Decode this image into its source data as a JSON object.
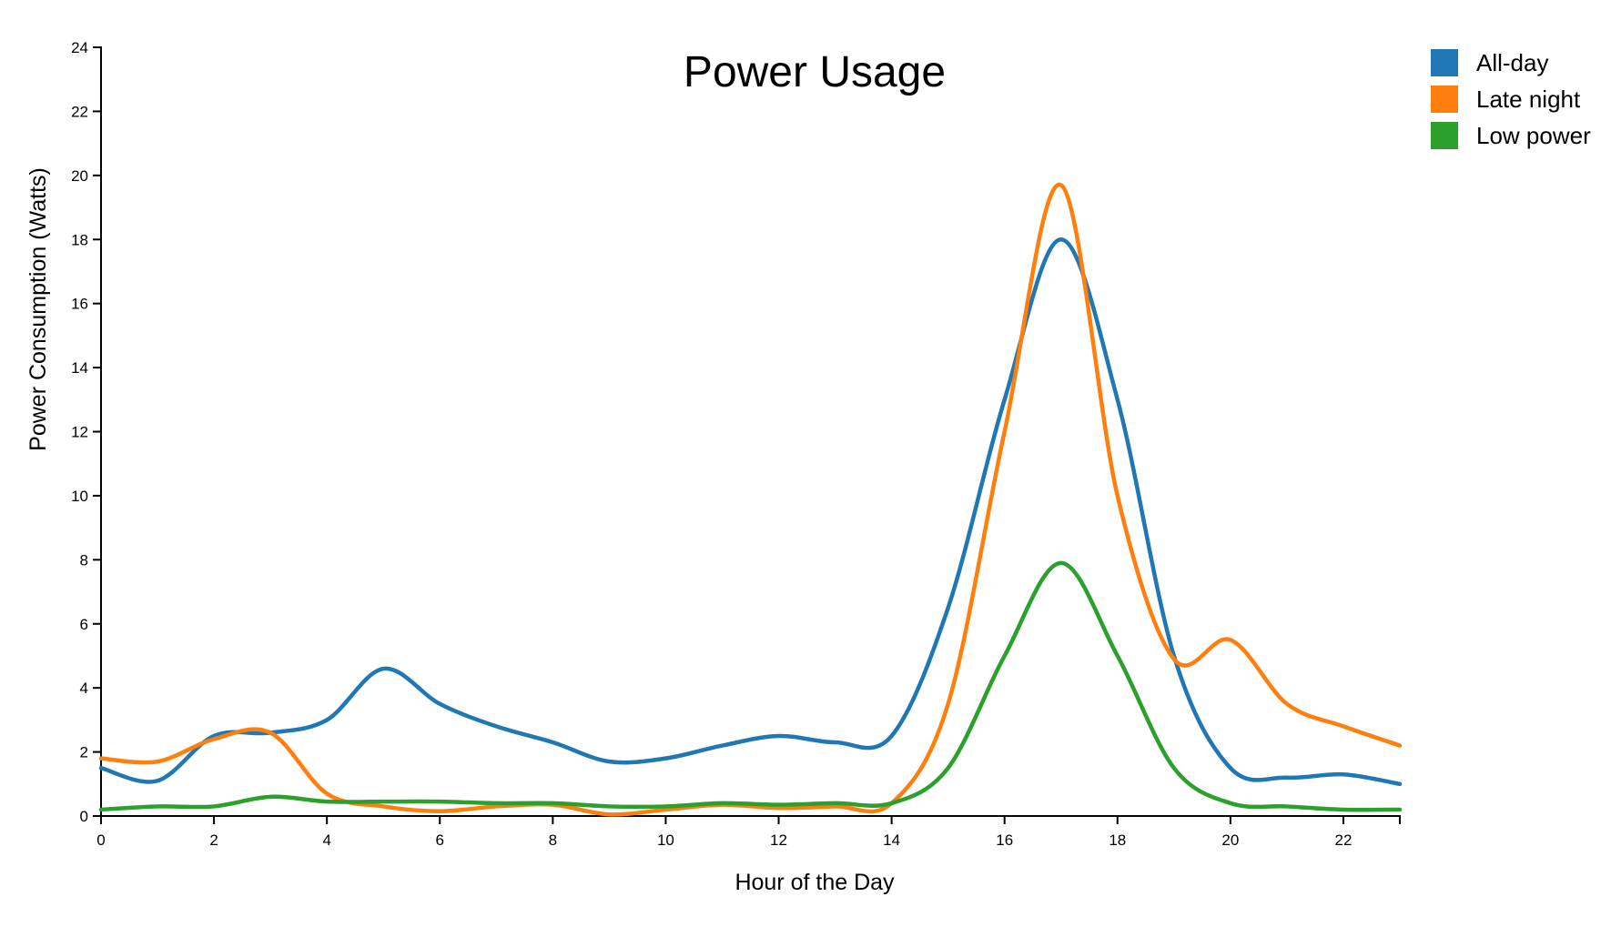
{
  "chart_data": {
    "type": "line",
    "title": "Power Usage",
    "xlabel": "Hour of the Day",
    "ylabel": "Power Consumption (Watts)",
    "xlim": [
      0,
      23
    ],
    "ylim": [
      0,
      24
    ],
    "x_ticks": [
      "0",
      "2",
      "4",
      "6",
      "8",
      "10",
      "12",
      "14",
      "16",
      "18",
      "20",
      "22"
    ],
    "y_ticks": [
      "0",
      "2",
      "4",
      "6",
      "8",
      "10",
      "12",
      "14",
      "16",
      "18",
      "20",
      "22",
      "24"
    ],
    "legend_position": "top-right",
    "grid": false,
    "x": [
      0,
      1,
      2,
      3,
      4,
      5,
      6,
      7,
      8,
      9,
      10,
      11,
      12,
      13,
      14,
      15,
      16,
      17,
      18,
      19,
      20,
      21,
      22,
      23
    ],
    "series": [
      {
        "name": "All-day",
        "color": "#1f77b4",
        "values": [
          1.5,
          1.1,
          2.5,
          2.6,
          3.0,
          4.6,
          3.5,
          2.8,
          2.3,
          1.7,
          1.8,
          2.2,
          2.5,
          2.3,
          2.5,
          6.5,
          13.0,
          18.0,
          13.0,
          5.0,
          1.5,
          1.2,
          1.3,
          1.0
        ]
      },
      {
        "name": "Late night",
        "color": "#ff7f0e",
        "values": [
          1.8,
          1.7,
          2.4,
          2.6,
          0.7,
          0.3,
          0.15,
          0.3,
          0.35,
          0.05,
          0.2,
          0.35,
          0.25,
          0.3,
          0.4,
          3.5,
          12.0,
          19.7,
          10.0,
          4.9,
          5.5,
          3.5,
          2.8,
          2.2
        ]
      },
      {
        "name": "Low power",
        "color": "#2ca02c",
        "values": [
          0.2,
          0.3,
          0.3,
          0.6,
          0.45,
          0.45,
          0.45,
          0.4,
          0.4,
          0.3,
          0.3,
          0.4,
          0.35,
          0.4,
          0.4,
          1.5,
          5.0,
          7.9,
          5.0,
          1.5,
          0.4,
          0.3,
          0.2,
          0.2
        ]
      }
    ]
  }
}
